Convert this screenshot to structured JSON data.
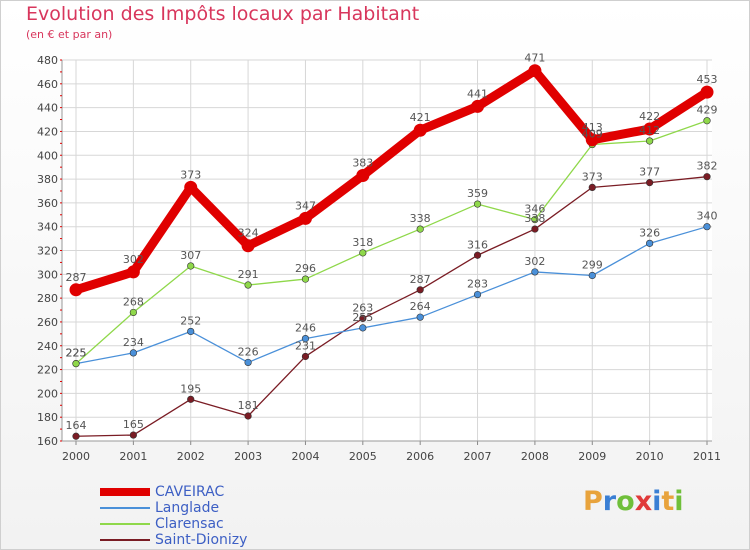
{
  "chart_data": {
    "type": "line",
    "title": "Evolution des Impôts locaux par Habitant",
    "subtitle": "(en € et par an)",
    "xlabel": "",
    "ylabel": "",
    "categories": [
      "2000",
      "2001",
      "2002",
      "2003",
      "2004",
      "2005",
      "2006",
      "2007",
      "2008",
      "2009",
      "2010",
      "2011"
    ],
    "ylim": [
      160,
      480
    ],
    "yticks": [
      "160",
      "180",
      "200",
      "220",
      "240",
      "260",
      "280",
      "300",
      "320",
      "340",
      "360",
      "380",
      "400",
      "420",
      "440",
      "460",
      "480"
    ],
    "grid": true,
    "legend_position": "bottom-left",
    "series": [
      {
        "name": "CAVEIRAC",
        "color": "#e00000",
        "values": [
          287,
          302,
          373,
          324,
          347,
          383,
          421,
          441,
          471,
          413,
          422,
          453
        ]
      },
      {
        "name": "Langlade",
        "color": "#4a90d9",
        "values": [
          225,
          234,
          252,
          226,
          246,
          255,
          264,
          283,
          302,
          299,
          326,
          340
        ]
      },
      {
        "name": "Clarensac",
        "color": "#8fd84a",
        "values": [
          225,
          268,
          307,
          291,
          296,
          318,
          338,
          359,
          346,
          409,
          412,
          429
        ]
      },
      {
        "name": "Saint-Dionizy",
        "color": "#7a1c24",
        "values": [
          164,
          165,
          195,
          181,
          231,
          263,
          287,
          316,
          338,
          373,
          377,
          382
        ]
      }
    ]
  },
  "logo": {
    "letters": [
      "P",
      "r",
      "o",
      "x",
      "i",
      "t",
      "i"
    ],
    "colors": [
      "#e8a33c",
      "#3a7fd4",
      "#6fbf3a",
      "#e03a3a",
      "#3a7fd4",
      "#e8a33c",
      "#6fbf3a"
    ]
  }
}
